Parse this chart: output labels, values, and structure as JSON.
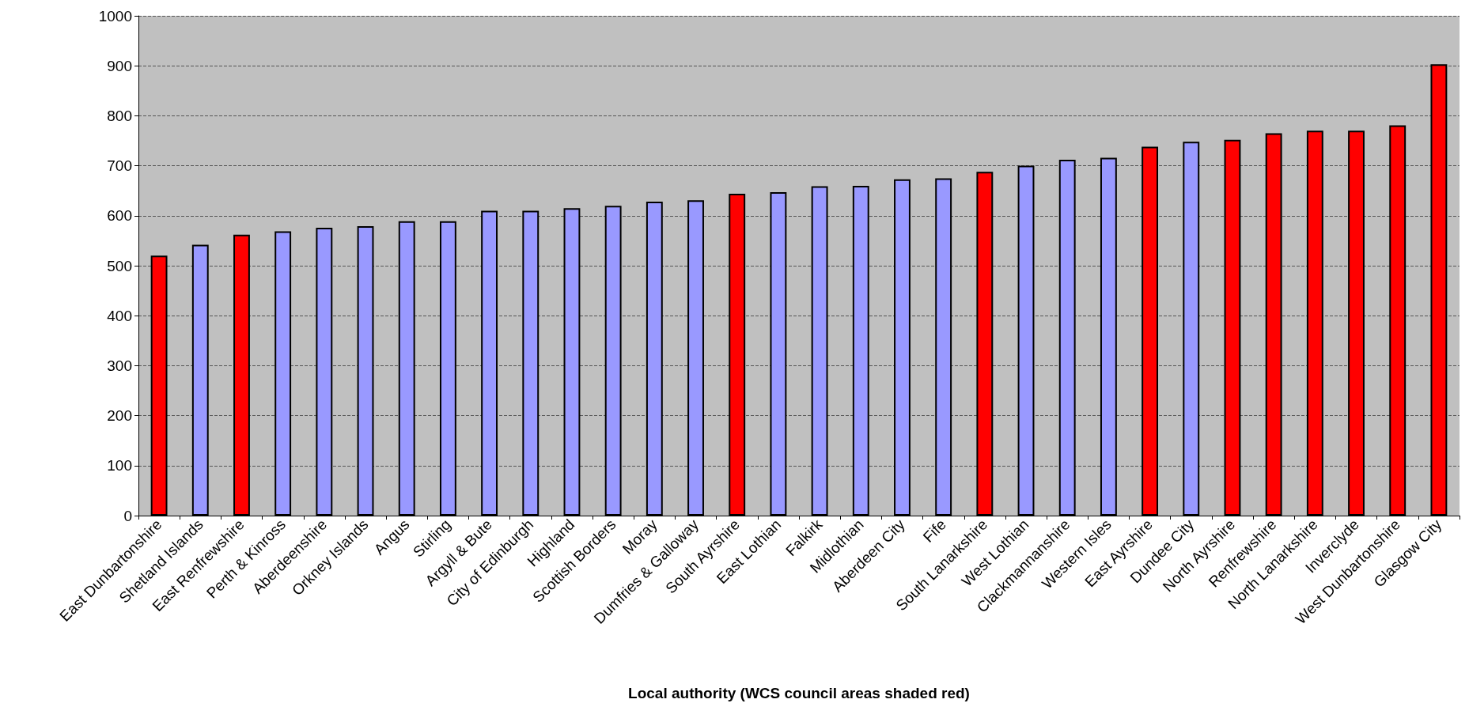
{
  "chart_data": {
    "type": "bar",
    "xlabel": "Local authority (WCS council areas shaded red)",
    "categories": [
      "East Dunbartonshire",
      "Shetland Islands",
      "East Renfrewshire",
      "Perth & Kinross",
      "Aberdeenshire",
      "Orkney Islands",
      "Angus",
      "Stirling",
      "Argyll & Bute",
      "City of Edinburgh",
      "Highland",
      "Scottish Borders",
      "Moray",
      "Dumfries & Galloway",
      "South Ayrshire",
      "East Lothian",
      "Falkirk",
      "Midlothian",
      "Aberdeen City",
      "Fife",
      "South Lanarkshire",
      "West Lothian",
      "Clackmannanshire",
      "Western Isles",
      "East Ayrshire",
      "Dundee City",
      "North Ayrshire",
      "Renfrewshire",
      "North Lanarkshire",
      "Inverclyde",
      "West Dunbartonshire",
      "Glasgow City"
    ],
    "values": [
      520,
      542,
      562,
      569,
      576,
      579,
      589,
      589,
      610,
      610,
      615,
      620,
      628,
      631,
      644,
      647,
      659,
      660,
      673,
      675,
      688,
      700,
      712,
      716,
      738,
      748,
      752,
      765,
      770,
      770,
      781,
      903
    ],
    "colors": [
      "#ff0000",
      "#9999ff",
      "#ff0000",
      "#9999ff",
      "#9999ff",
      "#9999ff",
      "#9999ff",
      "#9999ff",
      "#9999ff",
      "#9999ff",
      "#9999ff",
      "#9999ff",
      "#9999ff",
      "#9999ff",
      "#ff0000",
      "#9999ff",
      "#9999ff",
      "#9999ff",
      "#9999ff",
      "#9999ff",
      "#ff0000",
      "#9999ff",
      "#9999ff",
      "#9999ff",
      "#ff0000",
      "#9999ff",
      "#ff0000",
      "#ff0000",
      "#ff0000",
      "#ff0000",
      "#ff0000",
      "#ff0000"
    ],
    "ylim": [
      0,
      1000
    ],
    "yticks": [
      0,
      100,
      200,
      300,
      400,
      500,
      600,
      700,
      800,
      900,
      1000
    ],
    "grid": "y"
  }
}
